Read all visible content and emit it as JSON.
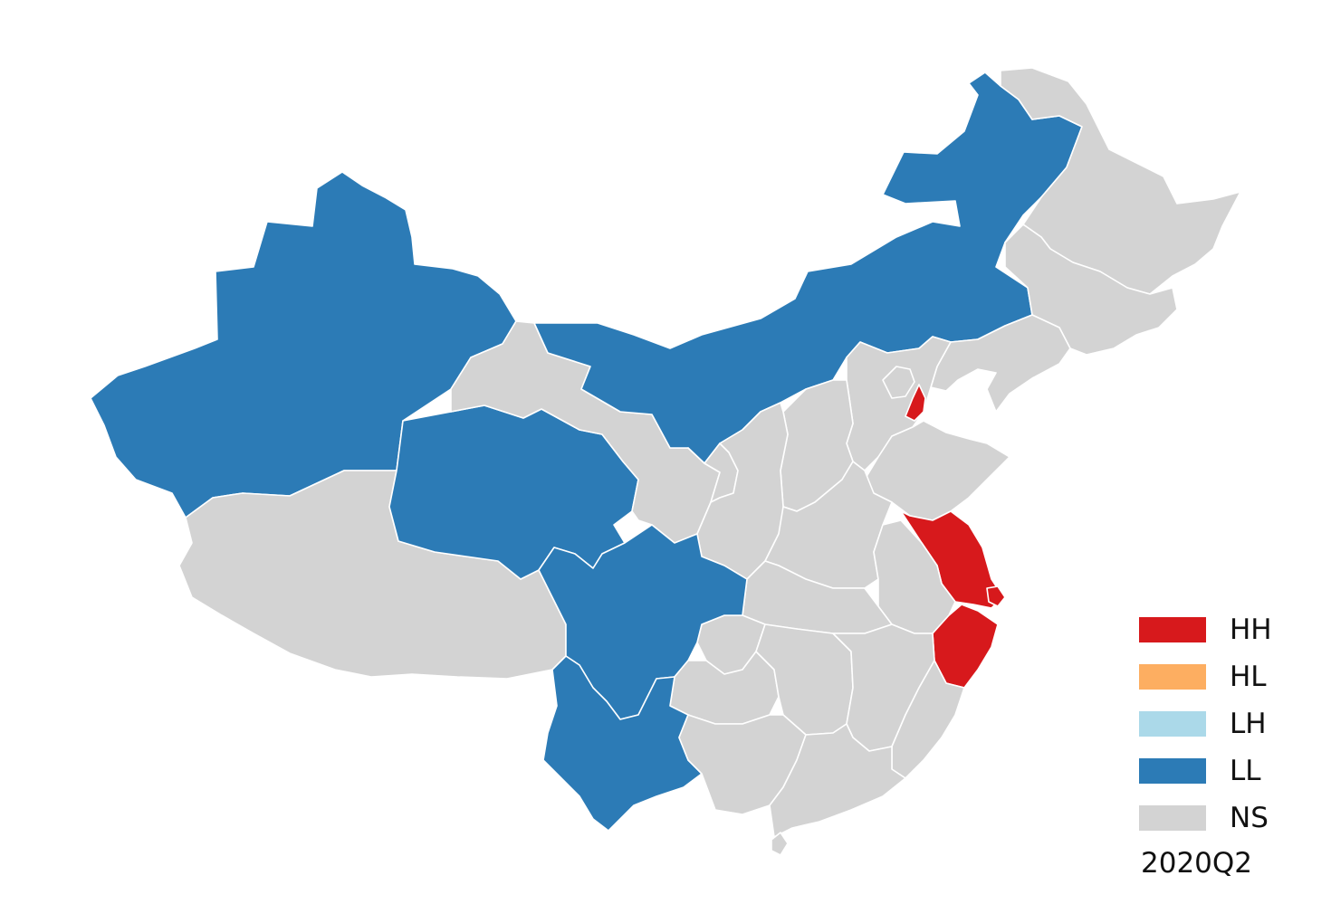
{
  "period_label": "2020Q2",
  "legend": [
    {
      "code": "HH",
      "color": "#d7191c"
    },
    {
      "code": "HL",
      "color": "#fdae61"
    },
    {
      "code": "LH",
      "color": "#abd9e9"
    },
    {
      "code": "LL",
      "color": "#2c7bb6"
    },
    {
      "code": "NS",
      "color": "#d3d3d3"
    }
  ],
  "regions": [
    {
      "name": "Xinjiang",
      "category": "LL"
    },
    {
      "name": "Tibet",
      "category": "NS"
    },
    {
      "name": "Qinghai",
      "category": "LL"
    },
    {
      "name": "Gansu",
      "category": "NS"
    },
    {
      "name": "Inner Mongolia",
      "category": "LL"
    },
    {
      "name": "Heilongjiang",
      "category": "NS"
    },
    {
      "name": "Jilin",
      "category": "NS"
    },
    {
      "name": "Liaoning",
      "category": "NS"
    },
    {
      "name": "Sichuan",
      "category": "LL"
    },
    {
      "name": "Yunnan",
      "category": "LL"
    },
    {
      "name": "Ningxia",
      "category": "NS"
    },
    {
      "name": "Shaanxi",
      "category": "NS"
    },
    {
      "name": "Shanxi",
      "category": "NS"
    },
    {
      "name": "Hebei",
      "category": "NS"
    },
    {
      "name": "Beijing",
      "category": "NS"
    },
    {
      "name": "Tianjin",
      "category": "HH"
    },
    {
      "name": "Shandong",
      "category": "NS"
    },
    {
      "name": "Henan",
      "category": "NS"
    },
    {
      "name": "Jiangsu",
      "category": "HH"
    },
    {
      "name": "Shanghai",
      "category": "HH"
    },
    {
      "name": "Zhejiang",
      "category": "HH"
    },
    {
      "name": "Anhui",
      "category": "NS"
    },
    {
      "name": "Hubei",
      "category": "NS"
    },
    {
      "name": "Chongqing",
      "category": "NS"
    },
    {
      "name": "Guizhou",
      "category": "NS"
    },
    {
      "name": "Hunan",
      "category": "NS"
    },
    {
      "name": "Jiangxi",
      "category": "NS"
    },
    {
      "name": "Fujian",
      "category": "NS"
    },
    {
      "name": "Guangxi",
      "category": "NS"
    },
    {
      "name": "Guangdong",
      "category": "NS"
    },
    {
      "name": "Hainan",
      "category": "NS"
    }
  ]
}
